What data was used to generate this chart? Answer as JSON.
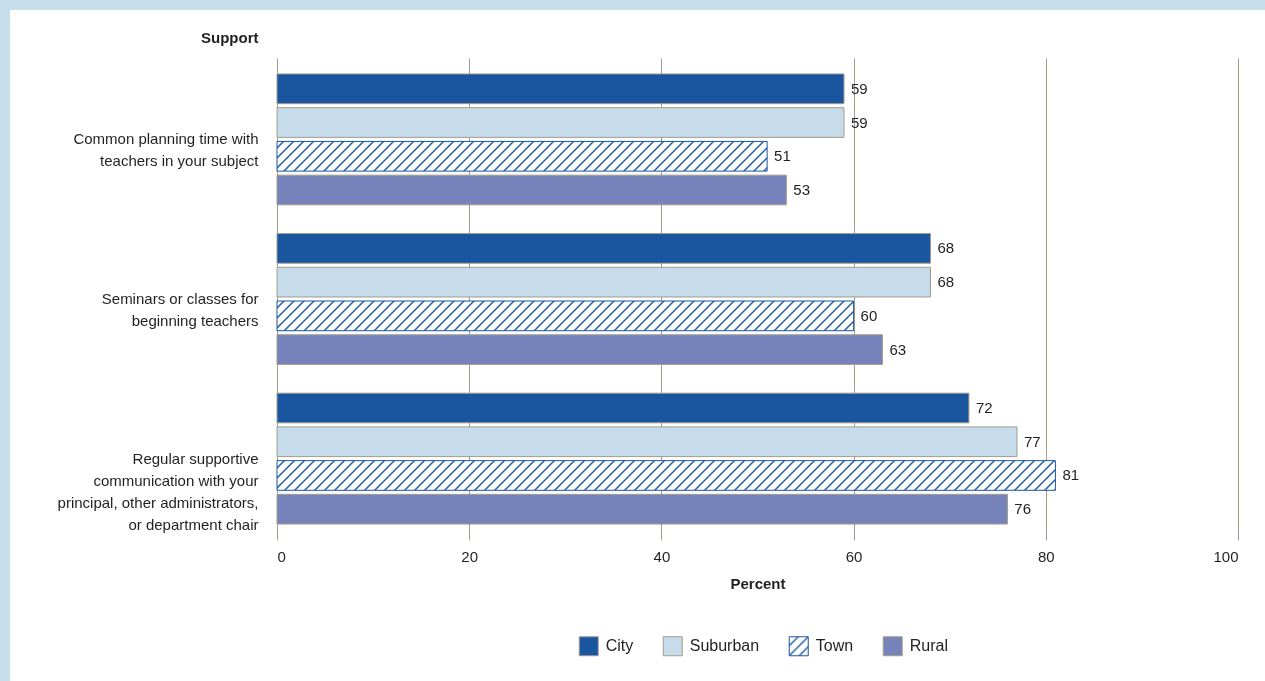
{
  "chart_data": {
    "type": "bar",
    "orientation": "horizontal",
    "categories": [
      "Common planning time with\nteachers in your subject",
      "Seminars or classes for\nbeginning teachers",
      "Regular supportive\ncommunication with your\nprincipal, other administrators,\nor department chair"
    ],
    "series": [
      {
        "name": "City",
        "color": "#1a56a0",
        "values": [
          59,
          68,
          72
        ]
      },
      {
        "name": "Suburban",
        "color": "#c6dcea",
        "values": [
          59,
          68,
          77
        ]
      },
      {
        "name": "Town",
        "color": "#1a56a0",
        "values": [
          51,
          60,
          81
        ]
      },
      {
        "name": "Rural",
        "color": "#7683bb",
        "values": [
          53,
          63,
          76
        ]
      }
    ],
    "xlabel": "Percent",
    "ylabel": "Support",
    "xlim": [
      0,
      100
    ],
    "xticks": [
      0,
      20,
      40,
      60,
      80,
      100
    ],
    "grid": "x",
    "legend": "bottom",
    "data_labels": true
  }
}
